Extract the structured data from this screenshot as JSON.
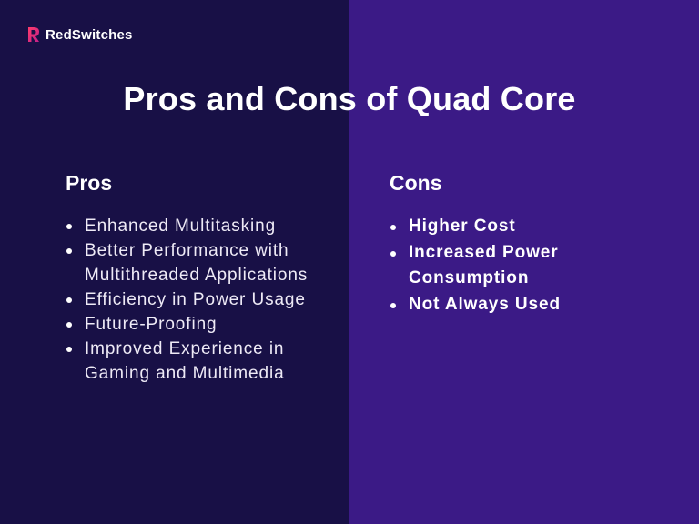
{
  "brand": {
    "name": "RedSwitches",
    "logo_icon": "redswitches-logo-icon",
    "accent_color": "#ff3b6b"
  },
  "title": "Pros and Cons of Quad Core",
  "colors": {
    "left_panel": "#181046",
    "right_panel": "#3b1a86",
    "text": "#ffffff"
  },
  "pros": {
    "heading": "Pros",
    "items": [
      "Enhanced Multitasking",
      "Better Performance with Multithreaded Applications",
      "Efficiency in Power Usage",
      "Future-Proofing",
      "Improved Experience in Gaming and Multimedia"
    ]
  },
  "cons": {
    "heading": "Cons",
    "items": [
      "Higher Cost",
      "Increased Power Consumption",
      "Not Always Used"
    ]
  }
}
